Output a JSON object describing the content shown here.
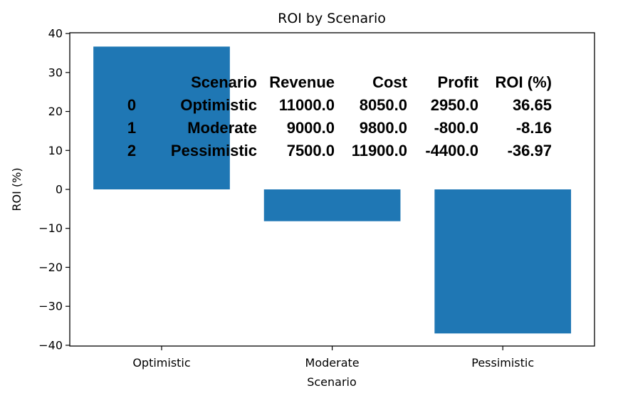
{
  "chart_data": {
    "type": "bar",
    "title": "ROI by Scenario",
    "xlabel": "Scenario",
    "ylabel": "ROI (%)",
    "categories": [
      "Optimistic",
      "Moderate",
      "Pessimistic"
    ],
    "values": [
      36.65,
      -8.16,
      -36.97
    ],
    "ylim": [
      -40.2,
      40.2
    ],
    "yticks": [
      40,
      30,
      20,
      10,
      0,
      -10,
      -20,
      -30,
      -40
    ],
    "ytick_labels": [
      "40",
      "30",
      "20",
      "10",
      "0",
      "−10",
      "−20",
      "−30",
      "−40"
    ],
    "bar_color": "#1f77b4",
    "grid": false,
    "legend": "none",
    "overlay_table": {
      "header": [
        "Scenario",
        "Revenue",
        "Cost",
        "Profit",
        "ROI (%)"
      ],
      "rows": [
        {
          "index": "0",
          "cells": [
            "Optimistic",
            "11000.0",
            "8050.0",
            "2950.0",
            "36.65"
          ]
        },
        {
          "index": "1",
          "cells": [
            "Moderate",
            "9000.0",
            "9800.0",
            "-800.0",
            "-8.16"
          ]
        },
        {
          "index": "2",
          "cells": [
            "Pessimistic",
            "7500.0",
            "11900.0",
            "-4400.0",
            "-36.97"
          ]
        }
      ]
    }
  }
}
